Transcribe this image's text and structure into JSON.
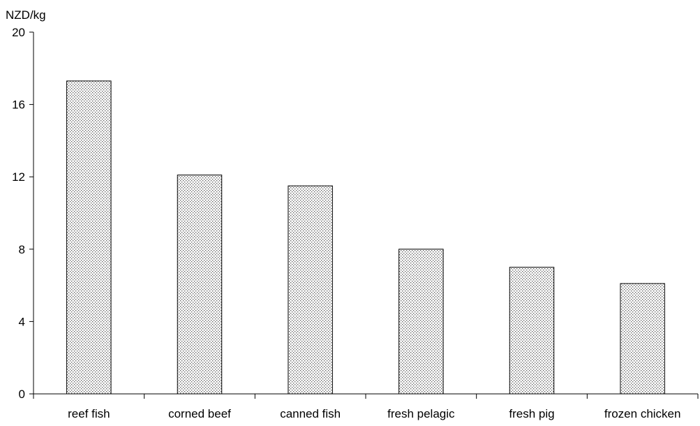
{
  "chart_data": {
    "type": "bar",
    "ylabel": "NZD/kg",
    "categories": [
      "reef fish",
      "corned beef",
      "canned fish",
      "fresh pelagic",
      "fresh pig",
      "frozen chicken"
    ],
    "values": [
      17.3,
      12.1,
      11.5,
      8.0,
      7.0,
      6.1
    ],
    "ylim": [
      0,
      20
    ],
    "yticks": [
      "0",
      "4",
      "8",
      "12",
      "16",
      "20"
    ],
    "grid": false,
    "legend": "none",
    "bar_fill": "#d9d9d9",
    "bar_stroke": "#000000"
  }
}
